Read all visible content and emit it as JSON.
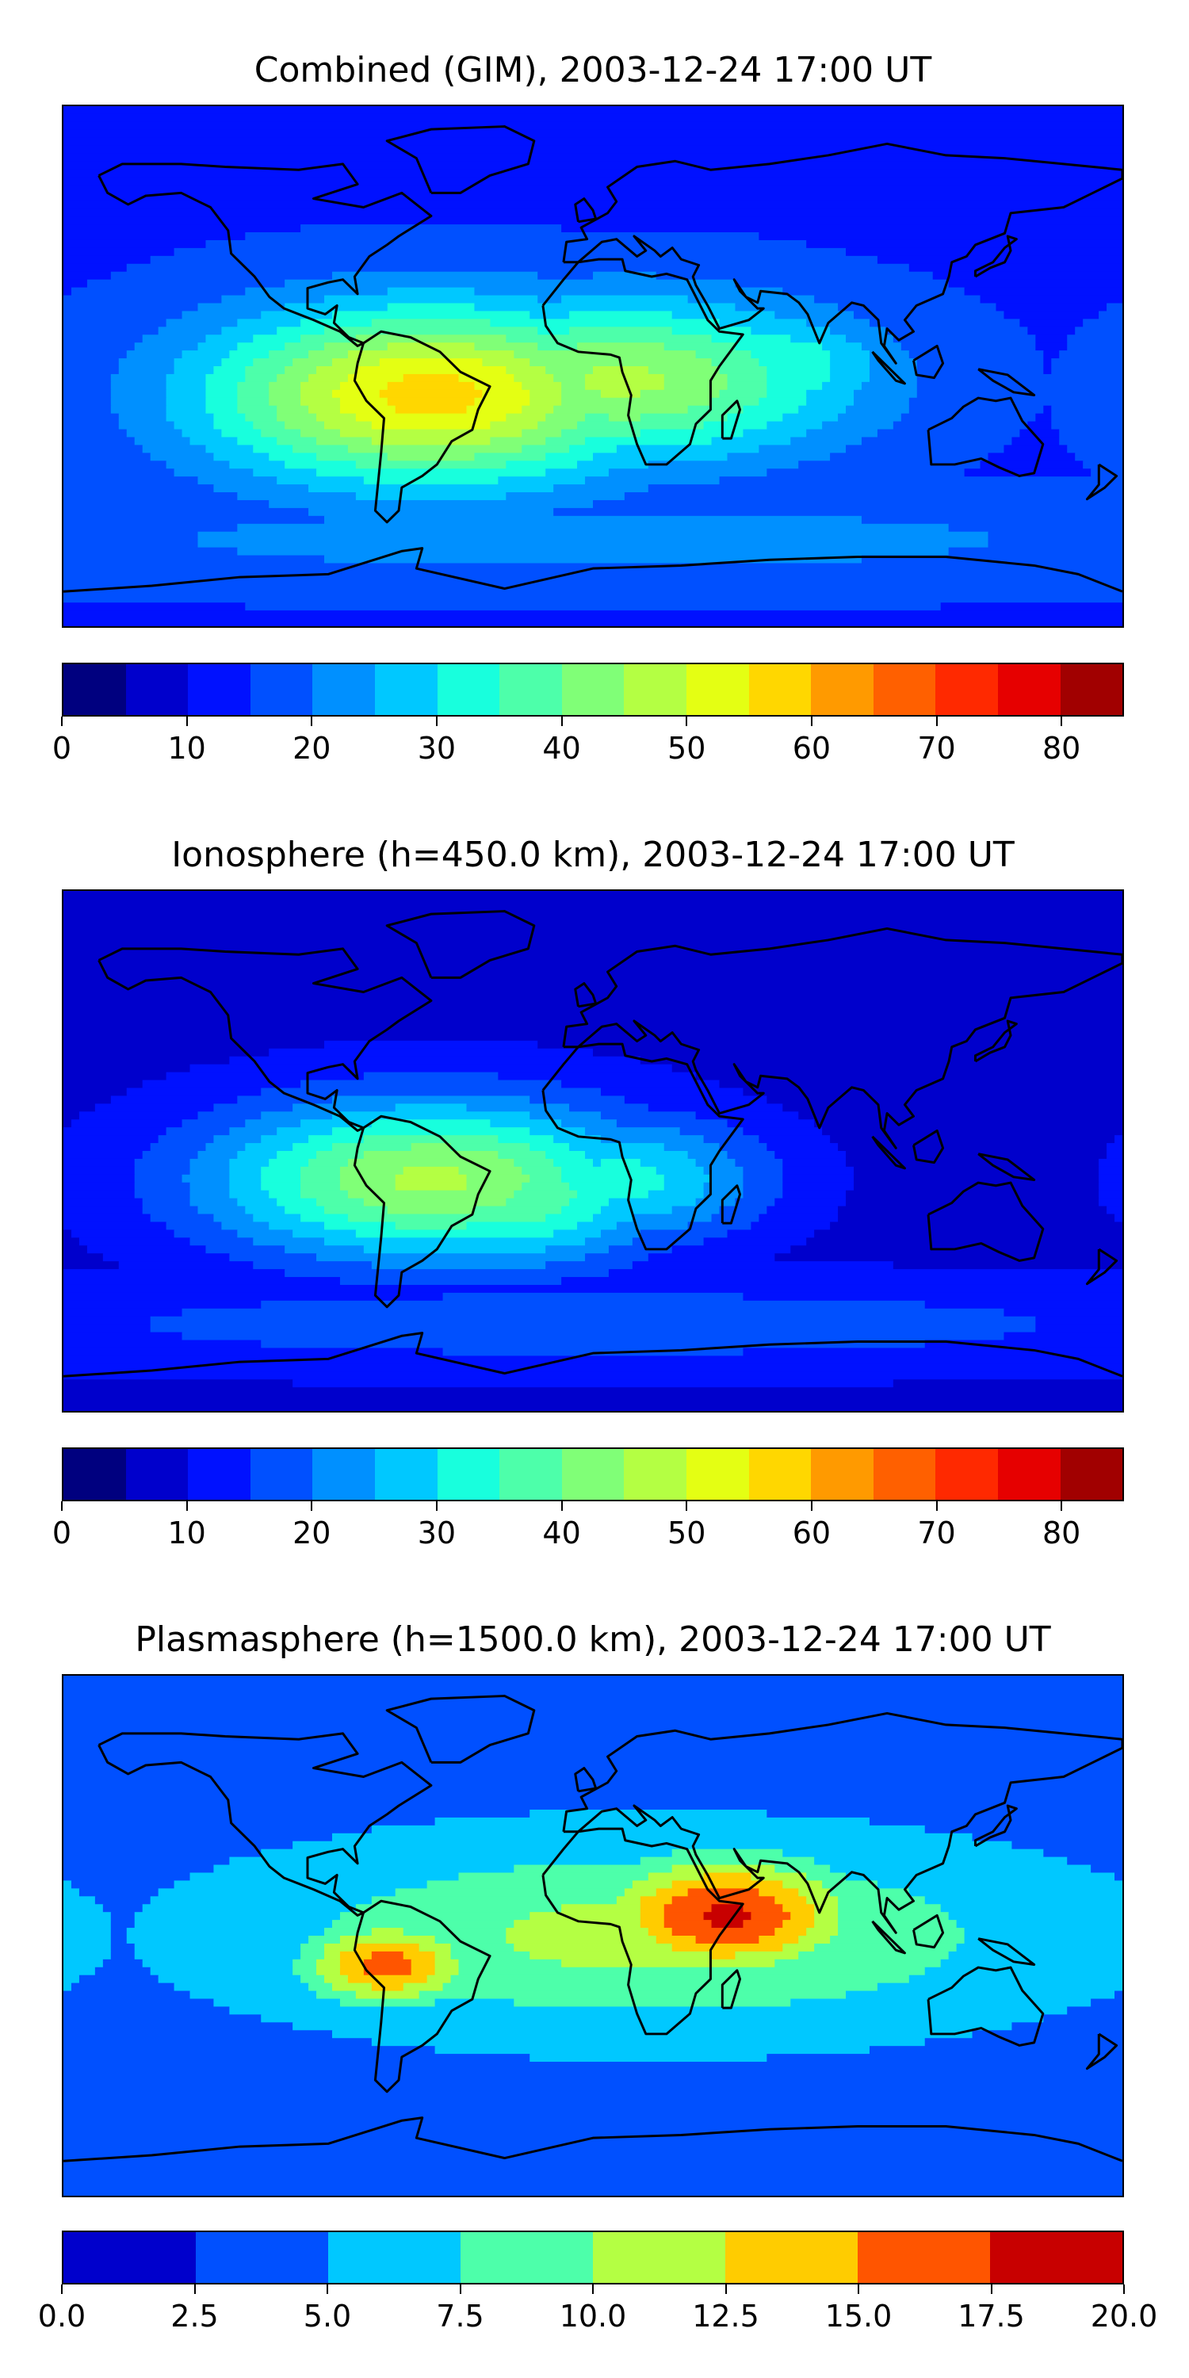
{
  "chart_data": [
    {
      "type": "heatmap",
      "title": "Combined (GIM), 2003-12-24 17:00 UT",
      "colorbar": {
        "boundaries": [
          0,
          5,
          10,
          15,
          20,
          25,
          30,
          35,
          40,
          45,
          50,
          55,
          60,
          65,
          70,
          75,
          80,
          85
        ],
        "ticks": [
          0,
          10,
          20,
          30,
          40,
          50,
          60,
          70,
          80
        ],
        "colors": [
          "#00007f",
          "#0000cc",
          "#0011ff",
          "#0050ff",
          "#0090ff",
          "#00c8ff",
          "#18ffdd",
          "#4dffaa",
          "#80ff77",
          "#b4ff43",
          "#e4ff13",
          "#ffd700",
          "#ff9a00",
          "#ff6000",
          "#ff2900",
          "#e60000",
          "#a10000"
        ]
      },
      "features": [
        {
          "lon": -55,
          "lat": -10,
          "value": 57,
          "spread_lon": 55,
          "spread_lat": 22
        },
        {
          "lon": 10,
          "lat": -5,
          "value": 46,
          "spread_lon": 55,
          "spread_lat": 20
        },
        {
          "lon": 60,
          "lat": 0,
          "value": 35,
          "spread_lon": 30,
          "spread_lat": 14
        },
        {
          "lon": -110,
          "lat": -10,
          "value": 36,
          "spread_lon": 25,
          "spread_lat": 22
        },
        {
          "lon": 0,
          "lat": -60,
          "value": 22,
          "spread_lon": 180,
          "spread_lat": 12
        }
      ],
      "value_range": [
        0,
        60
      ],
      "background_value": 14
    },
    {
      "type": "heatmap",
      "title": "Ionosphere  (h=450.0 km), 2003-12-24 17:00 UT",
      "colorbar": {
        "boundaries": [
          0,
          5,
          10,
          15,
          20,
          25,
          30,
          35,
          40,
          45,
          50,
          55,
          60,
          65,
          70,
          75,
          80,
          85
        ],
        "ticks": [
          0,
          10,
          20,
          30,
          40,
          50,
          60,
          70,
          80
        ],
        "colors": [
          "#00007f",
          "#0000cc",
          "#0011ff",
          "#0050ff",
          "#0090ff",
          "#00c8ff",
          "#18ffdd",
          "#4dffaa",
          "#80ff77",
          "#b4ff43",
          "#e4ff13",
          "#ffd700",
          "#ff9a00",
          "#ff6000",
          "#ff2900",
          "#e60000",
          "#a10000"
        ]
      },
      "features": [
        {
          "lon": -55,
          "lat": -10,
          "value": 46,
          "spread_lon": 55,
          "spread_lat": 20
        },
        {
          "lon": -30,
          "lat": -15,
          "value": 40,
          "spread_lon": 40,
          "spread_lat": 18
        },
        {
          "lon": 10,
          "lat": -10,
          "value": 32,
          "spread_lon": 35,
          "spread_lat": 16
        },
        {
          "lon": 0,
          "lat": -60,
          "value": 18,
          "spread_lon": 180,
          "spread_lat": 12
        }
      ],
      "value_range": [
        0,
        55
      ],
      "background_value": 8
    },
    {
      "type": "heatmap",
      "title": "Plasmasphere (h=1500.0 km), 2003-12-24 17:00 UT",
      "colorbar": {
        "boundaries": [
          0,
          2.5,
          5,
          7.5,
          10,
          12.5,
          15,
          17.5,
          20
        ],
        "ticks": [
          "0.0",
          "2.5",
          "5.0",
          "7.5",
          "10.0",
          "12.5",
          "15.0",
          "17.5",
          "20.0"
        ],
        "colors": [
          "#0000cc",
          "#0050ff",
          "#00c8ff",
          "#4dffaa",
          "#b4ff43",
          "#ffcc00",
          "#ff5500",
          "#c80000"
        ]
      },
      "features": [
        {
          "lon": 45,
          "lat": 7,
          "value": 18,
          "spread_lon": 30,
          "spread_lat": 14
        },
        {
          "lon": -70,
          "lat": -10,
          "value": 16,
          "spread_lon": 20,
          "spread_lat": 10
        },
        {
          "lon": 20,
          "lat": 0,
          "value": 11,
          "spread_lon": 90,
          "spread_lat": 22
        },
        {
          "lon": -40,
          "lat": 0,
          "value": 9,
          "spread_lon": 60,
          "spread_lat": 20
        }
      ],
      "value_range": [
        0,
        20
      ],
      "background_value": 4
    }
  ]
}
